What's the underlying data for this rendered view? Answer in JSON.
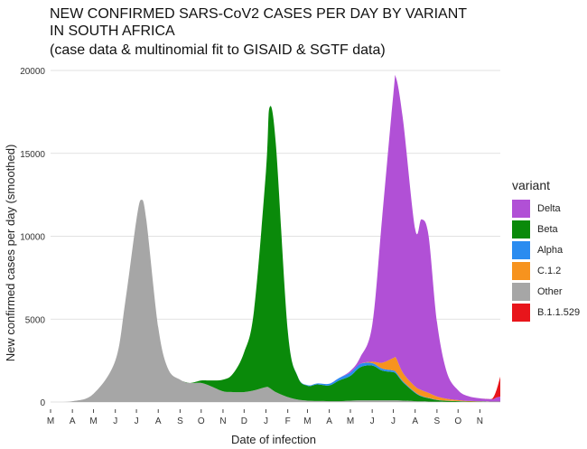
{
  "chart_data": {
    "type": "area",
    "stacked": true,
    "title_lines": [
      "NEW CONFIRMED SARS-CoV2 CASES PER DAY BY VARIANT",
      "IN SOUTH AFRICA"
    ],
    "subtitle": "(case data & multinomial fit to GISAID & SGTF data)",
    "xlabel": "Date of infection",
    "ylabel": "New confirmed cases per day (smoothed)",
    "ylim": [
      0,
      20000
    ],
    "yticks": [
      0,
      5000,
      10000,
      15000,
      20000
    ],
    "xlim": [
      "2020-03-01",
      "2021-11-30"
    ],
    "xticks": [
      {
        "date": "2020-03-01",
        "label": "M"
      },
      {
        "date": "2020-04-01",
        "label": "A"
      },
      {
        "date": "2020-05-01",
        "label": "M"
      },
      {
        "date": "2020-06-01",
        "label": "J"
      },
      {
        "date": "2020-07-01",
        "label": "J"
      },
      {
        "date": "2020-08-01",
        "label": "A"
      },
      {
        "date": "2020-09-01",
        "label": "S"
      },
      {
        "date": "2020-10-01",
        "label": "O"
      },
      {
        "date": "2020-11-01",
        "label": "N"
      },
      {
        "date": "2020-12-01",
        "label": "D"
      },
      {
        "date": "2021-01-01",
        "label": "J"
      },
      {
        "date": "2021-02-01",
        "label": "F"
      },
      {
        "date": "2021-03-01",
        "label": "M"
      },
      {
        "date": "2021-04-01",
        "label": "A"
      },
      {
        "date": "2021-05-01",
        "label": "M"
      },
      {
        "date": "2021-06-01",
        "label": "J"
      },
      {
        "date": "2021-07-01",
        "label": "J"
      },
      {
        "date": "2021-08-01",
        "label": "A"
      },
      {
        "date": "2021-09-01",
        "label": "S"
      },
      {
        "date": "2021-10-01",
        "label": "O"
      },
      {
        "date": "2021-11-01",
        "label": "N"
      }
    ],
    "grid": true,
    "legend_title": "variant",
    "legend_position": "right",
    "x": [
      "2020-03-01",
      "2020-04-01",
      "2020-05-01",
      "2020-06-01",
      "2020-06-15",
      "2020-07-01",
      "2020-07-08",
      "2020-07-15",
      "2020-08-01",
      "2020-08-15",
      "2020-09-01",
      "2020-09-15",
      "2020-10-01",
      "2020-10-15",
      "2020-11-01",
      "2020-11-15",
      "2020-12-01",
      "2020-12-15",
      "2021-01-01",
      "2021-01-06",
      "2021-01-15",
      "2021-02-01",
      "2021-02-15",
      "2021-03-01",
      "2021-03-15",
      "2021-04-01",
      "2021-04-15",
      "2021-05-01",
      "2021-05-15",
      "2021-06-01",
      "2021-06-15",
      "2021-07-01",
      "2021-07-05",
      "2021-07-15",
      "2021-08-01",
      "2021-08-10",
      "2021-08-20",
      "2021-09-01",
      "2021-09-15",
      "2021-10-01",
      "2021-10-15",
      "2021-11-01",
      "2021-11-15",
      "2021-11-20",
      "2021-11-25",
      "2021-11-30"
    ],
    "series": [
      {
        "name": "Other",
        "color": "#a6a6a6",
        "values": [
          0,
          50,
          500,
          2500,
          6000,
          11000,
          12200,
          11000,
          4500,
          2000,
          1350,
          1150,
          1150,
          950,
          650,
          600,
          600,
          700,
          900,
          850,
          600,
          300,
          150,
          80,
          60,
          50,
          50,
          80,
          100,
          100,
          100,
          100,
          100,
          80,
          50,
          40,
          30,
          20,
          10,
          10,
          5,
          5,
          5,
          5,
          5,
          5
        ]
      },
      {
        "name": "Beta",
        "color": "#0a8a0a",
        "values": [
          0,
          0,
          0,
          0,
          0,
          0,
          0,
          0,
          0,
          0,
          0,
          0,
          150,
          350,
          700,
          1100,
          2400,
          4800,
          13000,
          16900,
          15000,
          4000,
          1400,
          900,
          1000,
          950,
          1250,
          1500,
          2000,
          2100,
          1800,
          1700,
          1600,
          1100,
          500,
          300,
          200,
          100,
          60,
          40,
          20,
          15,
          10,
          10,
          10,
          10
        ]
      },
      {
        "name": "Alpha",
        "color": "#2b8cf0",
        "values": [
          0,
          0,
          0,
          0,
          0,
          0,
          0,
          0,
          0,
          0,
          0,
          0,
          0,
          0,
          0,
          0,
          0,
          0,
          0,
          0,
          0,
          10,
          20,
          40,
          60,
          100,
          150,
          200,
          200,
          150,
          120,
          100,
          90,
          60,
          40,
          30,
          20,
          15,
          10,
          5,
          5,
          5,
          5,
          5,
          5,
          5
        ]
      },
      {
        "name": "C.1.2",
        "color": "#f7931e",
        "values": [
          0,
          0,
          0,
          0,
          0,
          0,
          0,
          0,
          0,
          0,
          0,
          0,
          0,
          0,
          0,
          0,
          0,
          0,
          0,
          0,
          0,
          0,
          0,
          0,
          0,
          0,
          0,
          0,
          0,
          80,
          350,
          750,
          850,
          500,
          350,
          350,
          300,
          200,
          120,
          60,
          30,
          20,
          10,
          10,
          10,
          10
        ]
      },
      {
        "name": "Delta",
        "color": "#b150d6",
        "values": [
          0,
          0,
          0,
          0,
          0,
          0,
          0,
          0,
          0,
          0,
          0,
          0,
          0,
          0,
          0,
          0,
          0,
          0,
          0,
          0,
          0,
          0,
          0,
          0,
          0,
          0,
          0,
          100,
          400,
          2200,
          8700,
          15900,
          16900,
          15200,
          9500,
          10300,
          9500,
          4500,
          1600,
          600,
          300,
          180,
          150,
          150,
          250,
          300
        ]
      },
      {
        "name": "B.1.1.529",
        "color": "#e8151b",
        "values": [
          0,
          0,
          0,
          0,
          0,
          0,
          0,
          0,
          0,
          0,
          0,
          0,
          0,
          0,
          0,
          0,
          0,
          0,
          0,
          0,
          0,
          0,
          0,
          0,
          0,
          0,
          0,
          0,
          0,
          0,
          0,
          0,
          0,
          0,
          0,
          0,
          0,
          0,
          0,
          0,
          0,
          0,
          0,
          100,
          500,
          1200
        ]
      }
    ],
    "legend": [
      {
        "label": "Delta",
        "color": "#b150d6"
      },
      {
        "label": "Beta",
        "color": "#0a8a0a"
      },
      {
        "label": "Alpha",
        "color": "#2b8cf0"
      },
      {
        "label": "C.1.2",
        "color": "#f7931e"
      },
      {
        "label": "Other",
        "color": "#a6a6a6"
      },
      {
        "label": "B.1.1.529",
        "color": "#e8151b"
      }
    ]
  }
}
